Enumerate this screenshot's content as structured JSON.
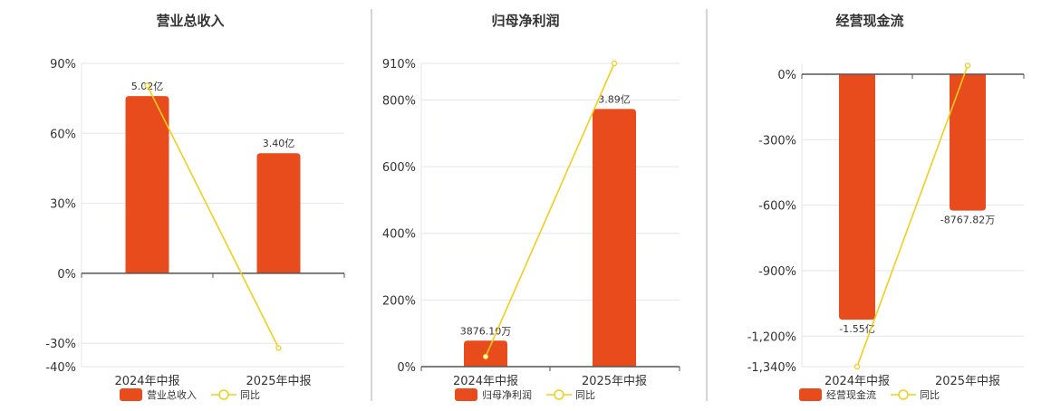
{
  "colors": {
    "bar": "#E84C1C",
    "line": "#F2CE1A",
    "grid": "#E3E6EE",
    "axis": "#555555",
    "divider": "#AAAAAA"
  },
  "chart_data": [
    {
      "type": "bar",
      "title": "营业总收入",
      "categories": [
        "2024年中报",
        "2025年中报"
      ],
      "series": [
        {
          "name": "营业总收入",
          "kind": "bar",
          "values": [
            76,
            51.5
          ],
          "labels": [
            "5.02亿",
            "3.40亿"
          ]
        },
        {
          "name": "同比",
          "kind": "line",
          "values": [
            80.5,
            -32
          ]
        }
      ],
      "yticks": [
        90,
        60,
        30,
        0,
        -30,
        -40
      ],
      "ytick_labels": [
        "90%",
        "60%",
        "30%",
        "0%",
        "-30%",
        "-40%"
      ],
      "ylim": [
        -40,
        90
      ]
    },
    {
      "type": "bar",
      "title": "归母净利润",
      "categories": [
        "2024年中报",
        "2025年中报"
      ],
      "series": [
        {
          "name": "归母净利润",
          "kind": "bar",
          "values": [
            78,
            773
          ],
          "labels": [
            "3876.10万",
            "3.89亿"
          ]
        },
        {
          "name": "同比",
          "kind": "line",
          "values": [
            30,
            910
          ]
        }
      ],
      "yticks": [
        910,
        800,
        600,
        400,
        200,
        0
      ],
      "ytick_labels": [
        "910%",
        "800%",
        "600%",
        "400%",
        "200%",
        "0%"
      ],
      "ylim": [
        0,
        910
      ]
    },
    {
      "type": "bar",
      "title": "经营现金流",
      "categories": [
        "2024年中报",
        "2025年中报"
      ],
      "series": [
        {
          "name": "经营现金流",
          "kind": "bar",
          "values": [
            -1125,
            -625
          ],
          "labels": [
            "-1.55亿",
            "-8767.82万"
          ]
        },
        {
          "name": "同比",
          "kind": "line",
          "values": [
            -1340,
            40
          ]
        }
      ],
      "yticks": [
        0,
        -300,
        -600,
        -900,
        -1200,
        -1340
      ],
      "ytick_labels": [
        "0%",
        "-300%",
        "-600%",
        "-900%",
        "-1,200%",
        "-1,340%"
      ],
      "ylim": [
        -1340,
        50
      ]
    }
  ]
}
